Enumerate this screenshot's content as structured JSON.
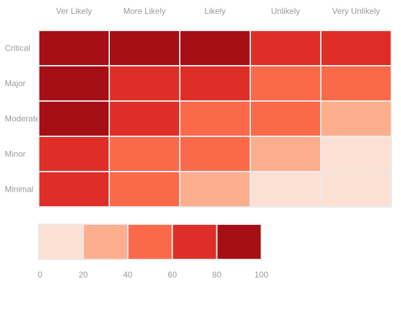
{
  "chart_data": {
    "type": "heatmap",
    "x_categories": [
      "Ver Likely",
      "More Likely",
      "Likely",
      "Unlikely",
      "Very Unlikely"
    ],
    "y_categories": [
      "Critical",
      "Major",
      "Moderate",
      "Minor",
      "Minimal"
    ],
    "values": [
      [
        90,
        90,
        90,
        70,
        70
      ],
      [
        90,
        70,
        70,
        50,
        50
      ],
      [
        90,
        70,
        50,
        50,
        30
      ],
      [
        70,
        50,
        50,
        30,
        10
      ],
      [
        70,
        50,
        30,
        10,
        10
      ]
    ],
    "legend": {
      "position": "bottom-left",
      "bins": [
        {
          "from": 0,
          "to": 20,
          "color": "#fde0d4"
        },
        {
          "from": 20,
          "to": 40,
          "color": "#fcae8d"
        },
        {
          "from": 40,
          "to": 60,
          "color": "#fb694b"
        },
        {
          "from": 60,
          "to": 80,
          "color": "#df2e27"
        },
        {
          "from": 80,
          "to": 100,
          "color": "#a50f15"
        }
      ],
      "tick_labels": [
        "0",
        "20",
        "40",
        "60",
        "80",
        "100"
      ]
    },
    "colors": {
      "cell_border": "#e9e9e9",
      "label_text": "#9a9a9a"
    }
  }
}
